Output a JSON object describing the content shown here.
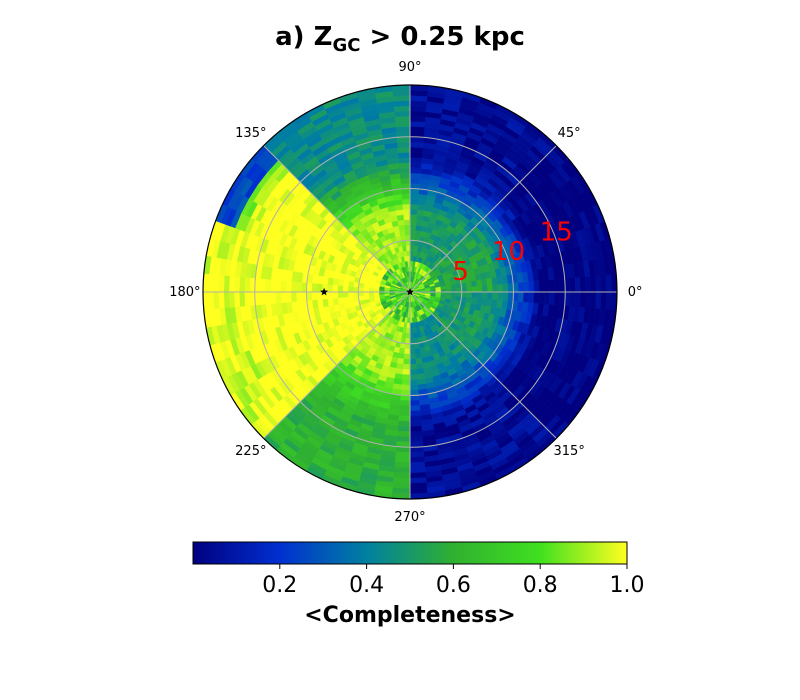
{
  "chart_data": {
    "type": "heatmap",
    "projection": "polar",
    "title": {
      "prefix": "a) Z",
      "subscript": "GC",
      "suffix": " > 0.25 kpc"
    },
    "angle_ticks": [
      "0°",
      "45°",
      "90°",
      "135°",
      "180°",
      "225°",
      "270°",
      "315°"
    ],
    "angle_tick_values": [
      0,
      45,
      90,
      135,
      180,
      225,
      270,
      315
    ],
    "radial_ticks": [
      5,
      10,
      15
    ],
    "radial_tick_labels": [
      "5",
      "10",
      "15"
    ],
    "radial_tick_color": "#ff0000",
    "rlim": [
      0,
      20
    ],
    "grid": true,
    "markers": [
      {
        "r": 0,
        "theta": 0
      },
      {
        "r": 8.3,
        "theta": 180
      }
    ],
    "completeness_by_angle": [
      {
        "theta_range": [
          0,
          45
        ],
        "near_r_lt_8": 0.55,
        "far": 0.0
      },
      {
        "theta_range": [
          45,
          90
        ],
        "near_r_lt_8": 0.5,
        "far": 0.05
      },
      {
        "theta_range": [
          90,
          135
        ],
        "near_r_lt_8": 0.9,
        "far": 0.45
      },
      {
        "theta_range": [
          135,
          160
        ],
        "near_r_lt_8": 0.95,
        "far": 0.25
      },
      {
        "theta_range": [
          160,
          225
        ],
        "near_r_lt_8": 1.0,
        "far": 0.95
      },
      {
        "theta_range": [
          225,
          270
        ],
        "near_r_lt_8": 0.9,
        "far": 0.6
      },
      {
        "theta_range": [
          270,
          315
        ],
        "near_r_lt_8": 0.45,
        "far": 0.05
      },
      {
        "theta_range": [
          315,
          360
        ],
        "near_r_lt_8": 0.5,
        "far": 0.0
      }
    ],
    "colorbar": {
      "label": "<Completeness>",
      "range": [
        0,
        1
      ],
      "ticks": [
        0.2,
        0.4,
        0.6,
        0.8,
        1.0
      ],
      "tick_labels": [
        "0.2",
        "0.4",
        "0.6",
        "0.8",
        "1.0"
      ],
      "colors": [
        "#000080",
        "#0030d0",
        "#0080a0",
        "#30b030",
        "#40e020",
        "#ffff20"
      ]
    }
  }
}
